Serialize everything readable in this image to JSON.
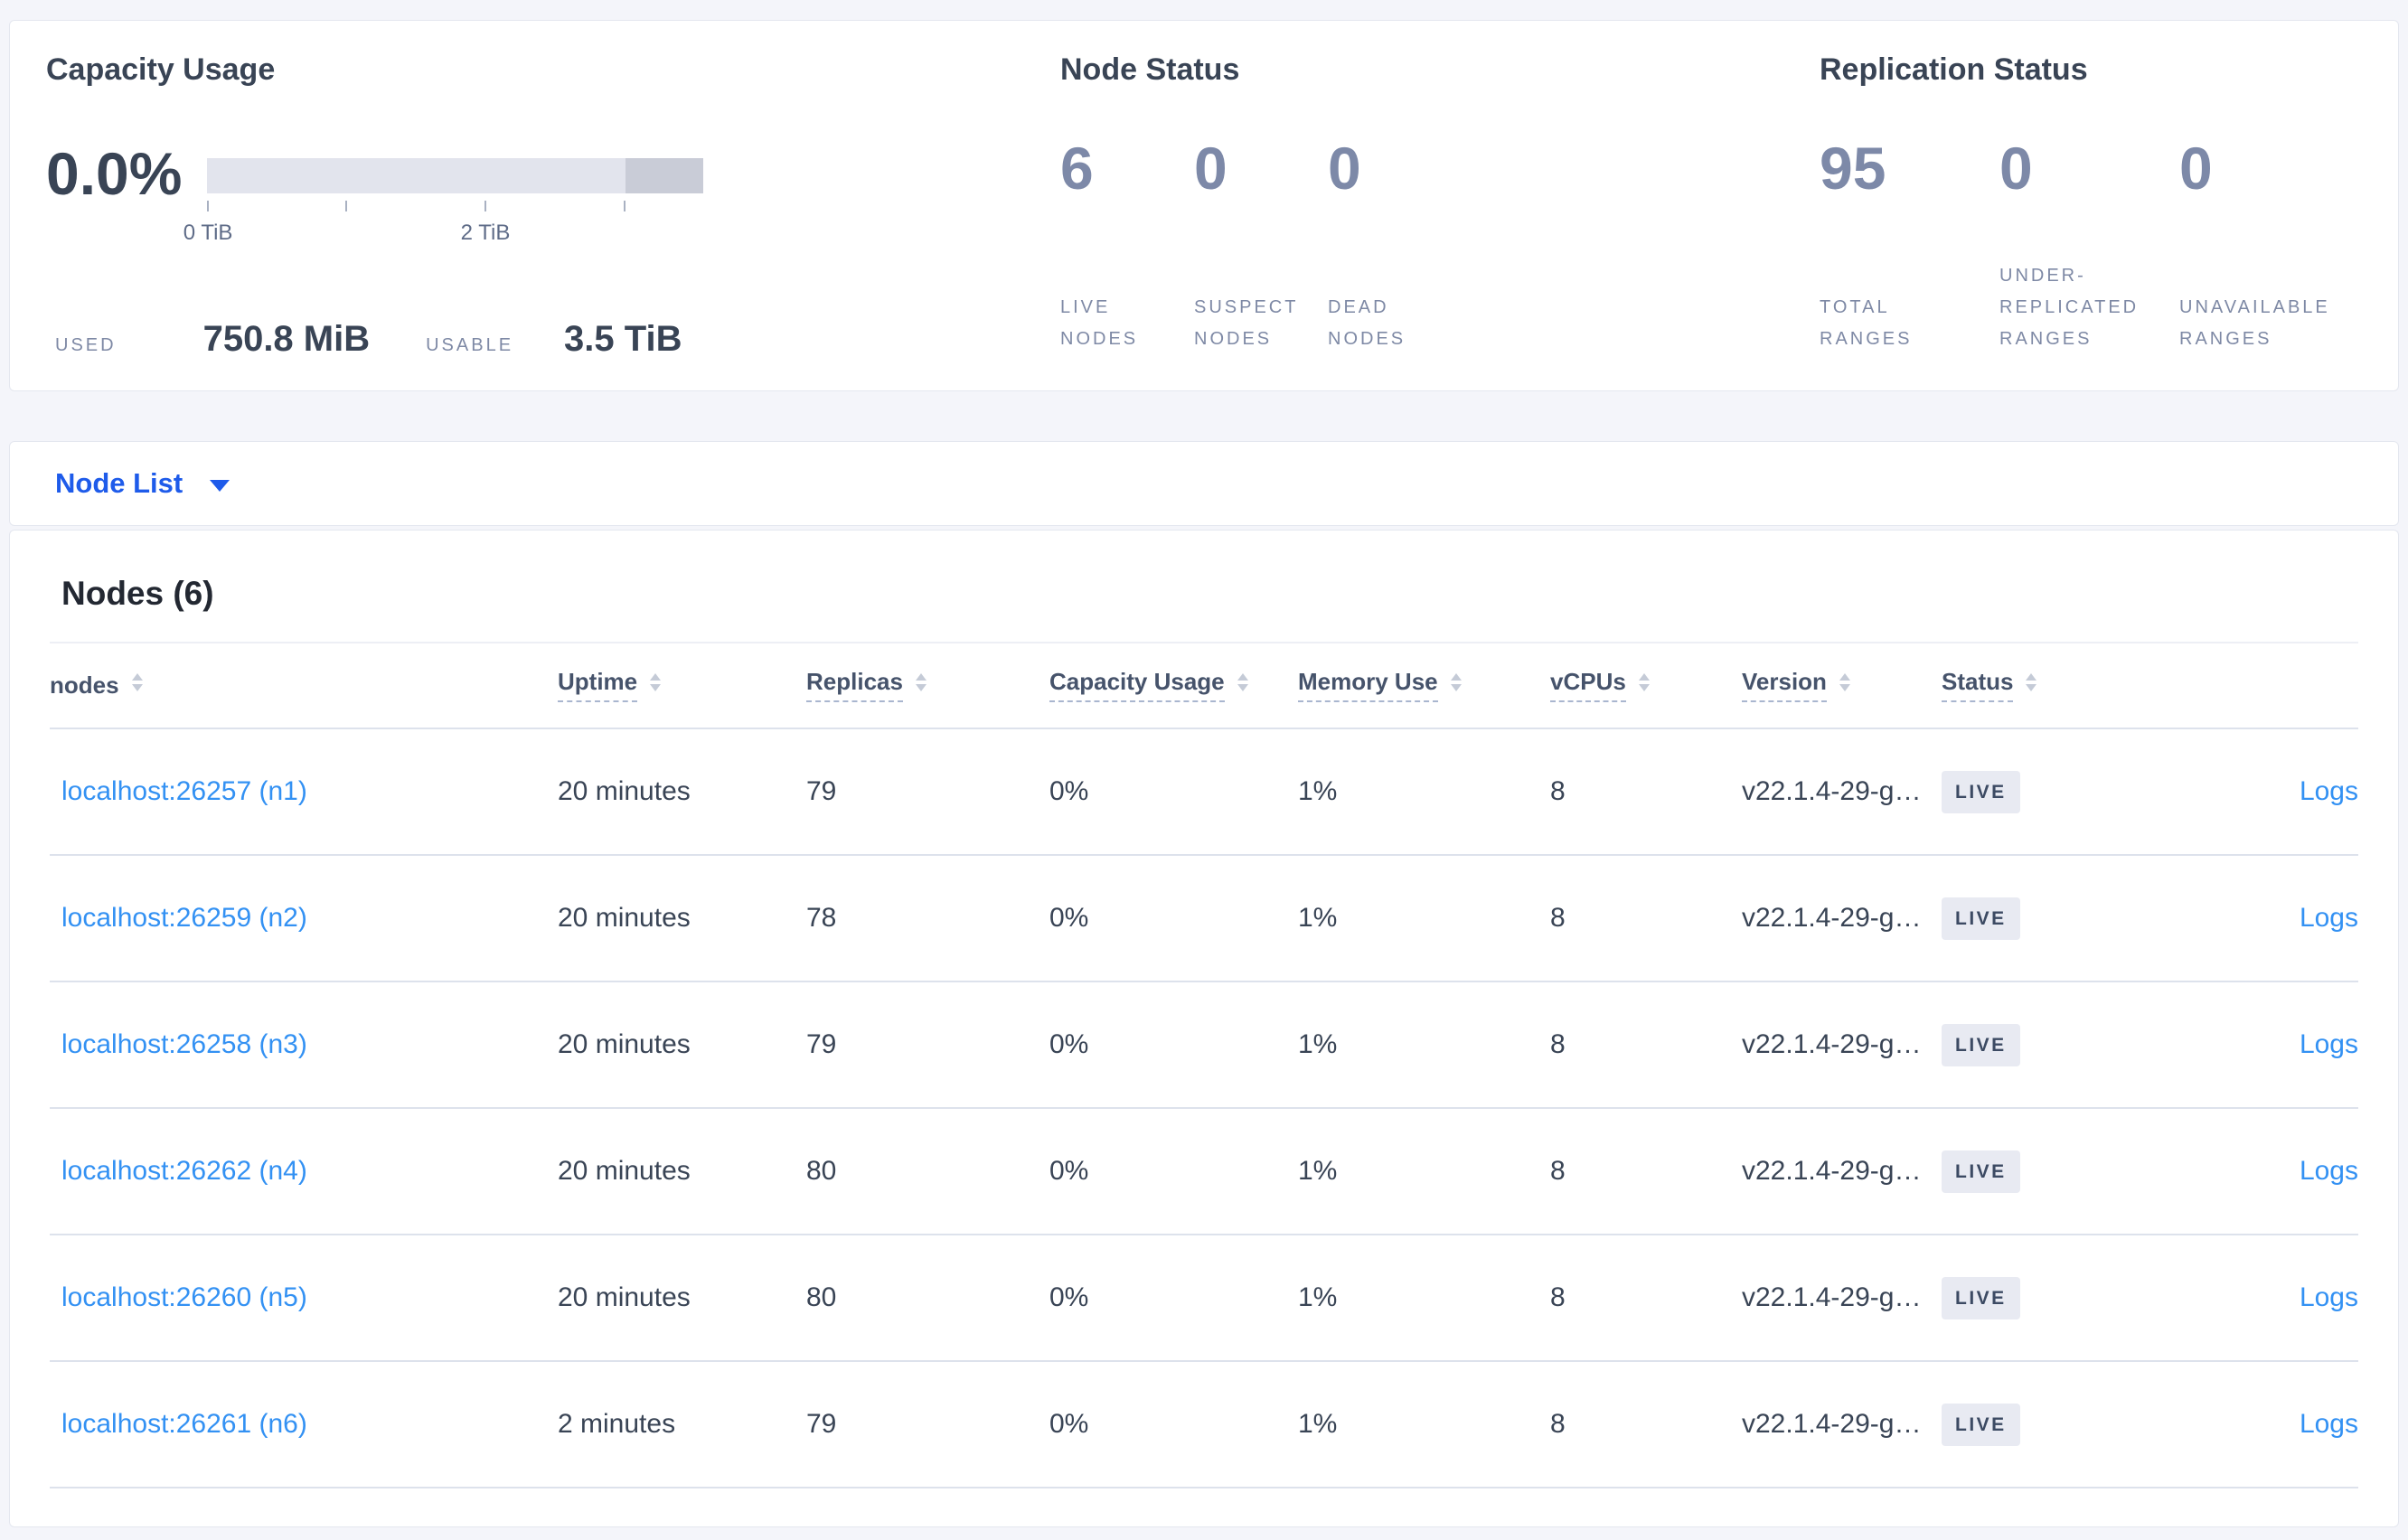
{
  "summary": {
    "capacity": {
      "title": "Capacity Usage",
      "percent": "0.0%",
      "used_label": "USED",
      "used_value": "750.8 MiB",
      "usable_label": "USABLE",
      "usable_value": "3.5 TiB",
      "bar_segments": [
        {
          "color": "#e2e4ed",
          "width_pct": 84.3
        },
        {
          "color": "#c9ccd7",
          "width_pct": 15.7
        }
      ],
      "ticks": [
        {
          "pos_pct": 0.2,
          "label": "0 TiB"
        },
        {
          "pos_pct": 28.1,
          "label": ""
        },
        {
          "pos_pct": 56.1,
          "label": "2 TiB"
        },
        {
          "pos_pct": 84.2,
          "label": ""
        }
      ]
    },
    "node_status": {
      "title": "Node Status",
      "stats": [
        {
          "value": "6",
          "label": "LIVE NODES"
        },
        {
          "value": "0",
          "label": "SUSPECT NODES"
        },
        {
          "value": "0",
          "label": "DEAD NODES"
        }
      ]
    },
    "replication": {
      "title": "Replication Status",
      "stats": [
        {
          "value": "95",
          "label": "TOTAL RANGES"
        },
        {
          "value": "0",
          "label": "UNDER-REPLICATED RANGES"
        },
        {
          "value": "0",
          "label": "UNAVAILABLE RANGES"
        }
      ]
    }
  },
  "nodelist": {
    "dropdown_label": "Node List",
    "heading": "Nodes (6)",
    "logs_label": "Logs",
    "columns": [
      {
        "label": "nodes",
        "plain": true
      },
      {
        "label": "Uptime"
      },
      {
        "label": "Replicas"
      },
      {
        "label": "Capacity Usage"
      },
      {
        "label": "Memory Use"
      },
      {
        "label": "vCPUs"
      },
      {
        "label": "Version"
      },
      {
        "label": "Status"
      }
    ],
    "rows": [
      {
        "node": "localhost:26257 (n1)",
        "uptime": "20 minutes",
        "replicas": "79",
        "capacity": "0%",
        "memory": "1%",
        "vcpus": "8",
        "version": "v22.1.4-29-g…",
        "status": "LIVE"
      },
      {
        "node": "localhost:26259 (n2)",
        "uptime": "20 minutes",
        "replicas": "78",
        "capacity": "0%",
        "memory": "1%",
        "vcpus": "8",
        "version": "v22.1.4-29-g…",
        "status": "LIVE"
      },
      {
        "node": "localhost:26258 (n3)",
        "uptime": "20 minutes",
        "replicas": "79",
        "capacity": "0%",
        "memory": "1%",
        "vcpus": "8",
        "version": "v22.1.4-29-g…",
        "status": "LIVE"
      },
      {
        "node": "localhost:26262 (n4)",
        "uptime": "20 minutes",
        "replicas": "80",
        "capacity": "0%",
        "memory": "1%",
        "vcpus": "8",
        "version": "v22.1.4-29-g…",
        "status": "LIVE"
      },
      {
        "node": "localhost:26260 (n5)",
        "uptime": "20 minutes",
        "replicas": "80",
        "capacity": "0%",
        "memory": "1%",
        "vcpus": "8",
        "version": "v22.1.4-29-g…",
        "status": "LIVE"
      },
      {
        "node": "localhost:26261 (n6)",
        "uptime": "2 minutes",
        "replicas": "79",
        "capacity": "0%",
        "memory": "1%",
        "vcpus": "8",
        "version": "v22.1.4-29-g…",
        "status": "LIVE"
      }
    ],
    "colors": {
      "link_blue": "#3391f3",
      "dropdown_blue": "#1e5bea",
      "badge_bg": "#e8eaf2",
      "badge_text": "#3c4a63"
    }
  }
}
